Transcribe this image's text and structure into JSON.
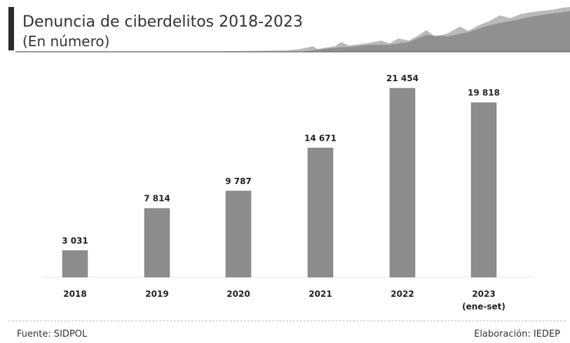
{
  "header": {
    "title": "Denuncia de ciberdelitos 2018-2023",
    "subtitle": "(En número)"
  },
  "footer": {
    "source": "Fuente: SIDPOL",
    "credit": "Elaboración: IEDEP"
  },
  "colors": {
    "bar": "#8c8c8c",
    "bar_stroke": "#7a7a7a",
    "title_accent": "#2b2b2b",
    "mountain": "#9a9a9a"
  },
  "chart_data": {
    "type": "bar",
    "title": "Denuncia de ciberdelitos 2018-2023",
    "subtitle": "(En número)",
    "categories": [
      "2018",
      "2019",
      "2020",
      "2021",
      "2022",
      "2023"
    ],
    "category_notes": [
      "",
      "",
      "",
      "",
      "",
      "(ene-set)"
    ],
    "values": [
      3031,
      7814,
      9787,
      14671,
      21454,
      19818
    ],
    "value_labels": [
      "3 031",
      "7 814",
      "9 787",
      "14 671",
      "21 454",
      "19 818"
    ],
    "xlabel": "",
    "ylabel": "",
    "ylim": [
      0,
      21454
    ],
    "grid": false,
    "legend": "none"
  }
}
